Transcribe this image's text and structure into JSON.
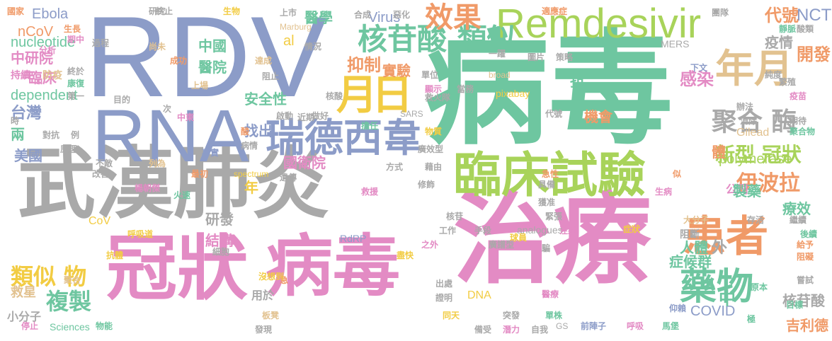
{
  "colors": {
    "background": "#ffffff",
    "blue": "#8c9cc8",
    "green": "#6ec6a0",
    "pink": "#e38bc4",
    "grey": "#a9a9a9",
    "orange": "#f09a68",
    "lime": "#a8d35a",
    "yellow": "#f2cc43",
    "tan": "#e2c290"
  },
  "words": [
    {
      "text": "病毒",
      "color": "green"
    },
    {
      "text": "RDV",
      "color": "blue"
    },
    {
      "text": "武漢肺炎",
      "color": "grey"
    },
    {
      "text": "治療",
      "color": "pink"
    },
    {
      "text": "病毒",
      "color": "pink"
    },
    {
      "text": "冠狀",
      "color": "pink"
    },
    {
      "text": "RNA",
      "color": "blue"
    },
    {
      "text": "臨床試驗",
      "color": "lime"
    },
    {
      "text": "Remdesivir",
      "color": "lime"
    },
    {
      "text": "瑞德西韋",
      "color": "blue"
    },
    {
      "text": "患者",
      "color": "orange"
    },
    {
      "text": "藥物",
      "color": "green"
    },
    {
      "text": "年月",
      "color": "tan"
    },
    {
      "text": "月",
      "color": "yellow"
    },
    {
      "text": "日",
      "color": "yellow"
    },
    {
      "text": "核苷酸 類似",
      "color": "green"
    },
    {
      "text": "效果",
      "color": "orange"
    },
    {
      "text": "聚合 酶",
      "color": "grey"
    },
    {
      "text": "伊波拉",
      "color": "orange"
    },
    {
      "text": "新型 冠狀",
      "color": "lime"
    },
    {
      "text": "類似 物",
      "color": "yellow"
    },
    {
      "text": "複製",
      "color": "green"
    },
    {
      "text": "感染",
      "color": "pink"
    },
    {
      "text": "開發",
      "color": "orange"
    },
    {
      "text": "抑制",
      "color": "orange"
    },
    {
      "text": "代號",
      "color": "orange"
    },
    {
      "text": "NCT",
      "color": "blue"
    },
    {
      "text": "疫情",
      "color": "grey"
    },
    {
      "text": "Virus",
      "color": "blue"
    },
    {
      "text": "實驗",
      "color": "orange"
    },
    {
      "text": "安全性",
      "color": "green"
    },
    {
      "text": "找出",
      "color": "blue"
    },
    {
      "text": "台灣",
      "color": "blue"
    },
    {
      "text": "美國",
      "color": "blue"
    },
    {
      "text": "臨床",
      "color": "pink"
    },
    {
      "text": "dependent",
      "color": "green"
    },
    {
      "text": "nucleotide",
      "color": "green"
    },
    {
      "text": "中研院",
      "color": "pink"
    },
    {
      "text": "Ebola",
      "color": "blue"
    },
    {
      "text": "nCoV",
      "color": "orange"
    },
    {
      "text": "醫學",
      "color": "green"
    },
    {
      "text": "中國",
      "color": "green"
    },
    {
      "text": "醫院",
      "color": "green"
    },
    {
      "text": "國衛院",
      "color": "pink"
    },
    {
      "text": "機會",
      "color": "orange"
    },
    {
      "text": "polymerase",
      "color": "lime"
    },
    {
      "text": "公司",
      "color": "pink"
    },
    {
      "text": "體",
      "color": "orange"
    },
    {
      "text": "年",
      "color": "yellow"
    },
    {
      "text": "研發",
      "color": "grey"
    },
    {
      "text": "結構",
      "color": "pink"
    },
    {
      "text": "人體",
      "color": "green"
    },
    {
      "text": "症候群",
      "color": "green"
    },
    {
      "text": "製藥",
      "color": "green"
    },
    {
      "text": "療效",
      "color": "green"
    },
    {
      "text": "核苷酸",
      "color": "grey"
    },
    {
      "text": "吉利德",
      "color": "orange"
    },
    {
      "text": "COVID",
      "color": "blue"
    },
    {
      "text": "DNA",
      "color": "yellow"
    },
    {
      "text": "CoV",
      "color": "yellow"
    },
    {
      "text": "Gilead",
      "color": "tan"
    },
    {
      "text": "RdRP",
      "color": "blue"
    },
    {
      "text": "MERS",
      "color": "grey"
    },
    {
      "text": "SARS",
      "color": "grey"
    },
    {
      "text": "Marburg",
      "color": "tan"
    },
    {
      "text": "broad",
      "color": "tan"
    },
    {
      "text": "spectrum",
      "color": "yellow"
    },
    {
      "text": "analogues",
      "color": "grey"
    },
    {
      "text": "pixabay",
      "color": "yellow"
    },
    {
      "text": "Sciences",
      "color": "green"
    },
    {
      "text": "GS",
      "color": "grey"
    },
    {
      "text": "al",
      "color": "yellow"
    },
    {
      "text": "抗",
      "color": "green"
    },
    {
      "text": "中",
      "color": "green"
    },
    {
      "text": "外",
      "color": "grey"
    },
    {
      "text": "兩",
      "color": "green"
    },
    {
      "text": "救星",
      "color": "tan"
    },
    {
      "text": "小分子",
      "color": "grey"
    },
    {
      "text": "用於",
      "color": "grey"
    },
    {
      "text": "項",
      "color": "green"
    },
    {
      "text": "阻斷",
      "color": "grey"
    },
    {
      "text": "國家",
      "color": "orange"
    },
    {
      "text": "生長",
      "color": "orange"
    },
    {
      "text": "過程",
      "color": "grey"
    },
    {
      "text": "分析",
      "color": "pink"
    },
    {
      "text": "持續",
      "color": "pink"
    },
    {
      "text": "防疫",
      "color": "tan"
    },
    {
      "text": "終於",
      "color": "grey"
    },
    {
      "text": "康復",
      "color": "green"
    },
    {
      "text": "第一",
      "color": "grey"
    },
    {
      "text": "研究",
      "color": "grey"
    },
    {
      "text": "尚未",
      "color": "tan"
    },
    {
      "text": "成功",
      "color": "orange"
    },
    {
      "text": "達成",
      "color": "tan"
    },
    {
      "text": "阻止",
      "color": "grey"
    },
    {
      "text": "上場",
      "color": "tan"
    },
    {
      "text": "情況",
      "color": "grey"
    },
    {
      "text": "核酸",
      "color": "grey"
    },
    {
      "text": "近期",
      "color": "grey"
    },
    {
      "text": "做好",
      "color": "grey"
    },
    {
      "text": "啟動",
      "color": "grey"
    },
    {
      "text": "擔任",
      "color": "green"
    },
    {
      "text": "救火隊",
      "color": "grey"
    },
    {
      "text": "當務",
      "color": "grey"
    },
    {
      "text": "物質",
      "color": "yellow"
    },
    {
      "text": "廣效型",
      "color": "grey"
    },
    {
      "text": "藉由",
      "color": "grey"
    },
    {
      "text": "方式",
      "color": "grey"
    },
    {
      "text": "遺傳",
      "color": "grey"
    },
    {
      "text": "急性",
      "color": "orange"
    },
    {
      "text": "具備",
      "color": "grey"
    },
    {
      "text": "獲准",
      "color": "grey"
    },
    {
      "text": "緊張",
      "color": "grey"
    },
    {
      "text": "注射",
      "color": "pink"
    },
    {
      "text": "症狀",
      "color": "yellow"
    },
    {
      "text": "大分子",
      "color": "tan"
    },
    {
      "text": "存活",
      "color": "grey"
    },
    {
      "text": "繼續",
      "color": "grey"
    },
    {
      "text": "後續",
      "color": "green"
    },
    {
      "text": "給予",
      "color": "orange"
    },
    {
      "text": "阻礙",
      "color": "orange"
    },
    {
      "text": "嘗試",
      "color": "grey"
    },
    {
      "text": "原本",
      "color": "green"
    },
    {
      "text": "目標",
      "color": "green"
    },
    {
      "text": "仰賴",
      "color": "blue"
    },
    {
      "text": "馬堡",
      "color": "green"
    },
    {
      "text": "呼吸",
      "color": "pink"
    },
    {
      "text": "前陣子",
      "color": "blue"
    },
    {
      "text": "自我",
      "color": "grey"
    },
    {
      "text": "潛力",
      "color": "pink"
    },
    {
      "text": "備受",
      "color": "grey"
    },
    {
      "text": "突發",
      "color": "grey"
    },
    {
      "text": "單株",
      "color": "green"
    },
    {
      "text": "醫療",
      "color": "pink"
    },
    {
      "text": "廣譜型",
      "color": "grey"
    },
    {
      "text": "之外",
      "color": "pink"
    },
    {
      "text": "盡快",
      "color": "yellow"
    },
    {
      "text": "出處",
      "color": "grey"
    },
    {
      "text": "證明",
      "color": "grey"
    },
    {
      "text": "同天",
      "color": "yellow"
    },
    {
      "text": "板凳",
      "color": "tan"
    },
    {
      "text": "發現",
      "color": "grey"
    },
    {
      "text": "急",
      "color": "orange"
    },
    {
      "text": "沒想到",
      "color": "yellow"
    },
    {
      "text": "細胞",
      "color": "grey"
    },
    {
      "text": "物能",
      "color": "green"
    },
    {
      "text": "聚合",
      "color": "tan"
    },
    {
      "text": "停止",
      "color": "pink"
    },
    {
      "text": "抗體",
      "color": "yellow"
    },
    {
      "text": "呼吸道",
      "color": "yellow"
    },
    {
      "text": "火速",
      "color": "green"
    },
    {
      "text": "楊朝傑",
      "color": "pink"
    },
    {
      "text": "最初",
      "color": "orange"
    },
    {
      "text": "改善",
      "color": "grey"
    },
    {
      "text": "列為",
      "color": "tan"
    },
    {
      "text": "不敵",
      "color": "grey"
    },
    {
      "text": "原理",
      "color": "grey"
    },
    {
      "text": "對抗",
      "color": "grey"
    },
    {
      "text": "例",
      "color": "grey"
    },
    {
      "text": "時",
      "color": "grey"
    },
    {
      "text": "目的",
      "color": "grey"
    },
    {
      "text": "中東",
      "color": "pink"
    },
    {
      "text": "次",
      "color": "grey"
    },
    {
      "text": "酸",
      "color": "orange"
    },
    {
      "text": "病情",
      "color": "grey"
    },
    {
      "text": "事實",
      "color": "blue"
    },
    {
      "text": "期中",
      "color": "pink"
    },
    {
      "text": "上市",
      "color": "grey"
    },
    {
      "text": "生物",
      "color": "yellow"
    },
    {
      "text": "終止",
      "color": "grey"
    },
    {
      "text": "合成",
      "color": "grey"
    },
    {
      "text": "惡化",
      "color": "grey"
    },
    {
      "text": "一躍",
      "color": "grey"
    },
    {
      "text": "單位",
      "color": "grey"
    },
    {
      "text": "顯示",
      "color": "pink"
    },
    {
      "text": "適應症",
      "color": "orange"
    },
    {
      "text": "團隊",
      "color": "grey"
    },
    {
      "text": "靜脈",
      "color": "green"
    },
    {
      "text": "酸類",
      "color": "grey"
    },
    {
      "text": "圖片",
      "color": "grey"
    },
    {
      "text": "策略",
      "color": "grey"
    },
    {
      "text": "下文",
      "color": "blue"
    },
    {
      "text": "純度",
      "color": "grey"
    },
    {
      "text": "疫苗",
      "color": "pink"
    },
    {
      "text": "繁殖",
      "color": "grey"
    },
    {
      "text": "辦法",
      "color": "grey"
    },
    {
      "text": "消除",
      "color": "grey"
    },
    {
      "text": "期待",
      "color": "grey"
    },
    {
      "text": "聚合物",
      "color": "green"
    },
    {
      "text": "似",
      "color": "orange"
    },
    {
      "text": "生病",
      "color": "pink"
    },
    {
      "text": "代號",
      "color": "grey"
    },
    {
      "text": "修飾",
      "color": "grey"
    },
    {
      "text": "救援",
      "color": "pink"
    },
    {
      "text": "核苷",
      "color": "grey"
    },
    {
      "text": "工作",
      "color": "grey"
    },
    {
      "text": "手段",
      "color": "grey"
    },
    {
      "text": "球員",
      "color": "yellow"
    },
    {
      "text": "騙",
      "color": "grey"
    },
    {
      "text": "極",
      "color": "green"
    },
    {
      "text": "作用",
      "color": "yellow"
    },
    {
      "text": "物",
      "color": "yellow"
    },
    {
      "text": "成",
      "color": "grey"
    },
    {
      "text": "簡稱",
      "color": "grey"
    }
  ]
}
